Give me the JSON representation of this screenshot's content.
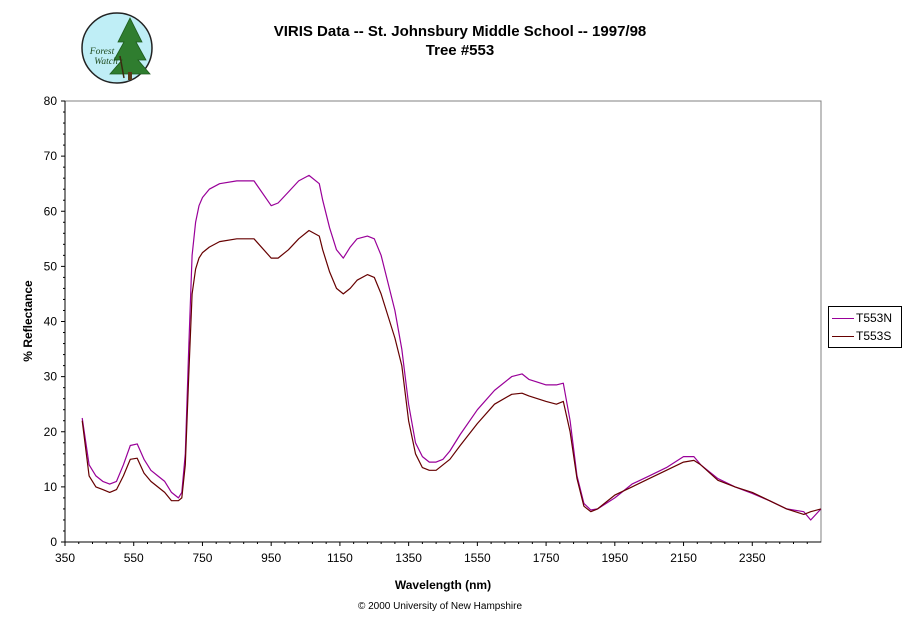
{
  "logo": {
    "line1": "Forest",
    "line2": "Watch",
    "icon": "forest-watch-logo"
  },
  "footer": "© 2000 University of New Hampshire",
  "chart_data": {
    "type": "line",
    "title": "VIRIS Data -- St. Johnsbury Middle School -- 1997/98",
    "subtitle": "Tree #553",
    "xlabel": "Wavelength (nm)",
    "ylabel": "% Reflectance",
    "xlim": [
      350,
      2550
    ],
    "ylim": [
      0,
      80
    ],
    "xticks": [
      350,
      550,
      750,
      950,
      1150,
      1350,
      1550,
      1750,
      1950,
      2150,
      2350
    ],
    "yticks": [
      0,
      10,
      20,
      30,
      40,
      50,
      60,
      70,
      80
    ],
    "grid": false,
    "legend_position": "right",
    "series": [
      {
        "name": "T553N",
        "color": "#990099",
        "x": [
          400,
          420,
          440,
          460,
          480,
          500,
          520,
          540,
          560,
          580,
          600,
          620,
          640,
          660,
          680,
          690,
          700,
          710,
          720,
          730,
          740,
          750,
          770,
          800,
          850,
          900,
          950,
          970,
          1000,
          1030,
          1060,
          1090,
          1100,
          1120,
          1140,
          1160,
          1180,
          1200,
          1230,
          1250,
          1270,
          1290,
          1310,
          1330,
          1350,
          1370,
          1390,
          1410,
          1430,
          1450,
          1470,
          1500,
          1550,
          1600,
          1650,
          1680,
          1700,
          1750,
          1780,
          1800,
          1820,
          1840,
          1860,
          1880,
          1900,
          1950,
          2000,
          2050,
          2100,
          2150,
          2180,
          2200,
          2250,
          2300,
          2350,
          2400,
          2450,
          2500,
          2520,
          2550
        ],
        "values": [
          22.5,
          14,
          12,
          11,
          10.5,
          11,
          14,
          17.5,
          17.8,
          15,
          13,
          12,
          11,
          9,
          8,
          9,
          16,
          35,
          52,
          58,
          61,
          62.5,
          64,
          65,
          65.5,
          65.5,
          61,
          61.5,
          63.5,
          65.5,
          66.5,
          65,
          62,
          57,
          53,
          51.5,
          53.5,
          55,
          55.5,
          55,
          52,
          47,
          42,
          35,
          25,
          18,
          15.5,
          14.5,
          14.5,
          15,
          16.5,
          19.5,
          24,
          27.5,
          30,
          30.5,
          29.5,
          28.5,
          28.5,
          28.8,
          22,
          12,
          7,
          5.8,
          6,
          8,
          10.5,
          12,
          13.5,
          15.5,
          15.5,
          14,
          11.5,
          10,
          8.8,
          7.5,
          6,
          5.5,
          4,
          6
        ]
      },
      {
        "name": "T553S",
        "color": "#660000",
        "x": [
          400,
          420,
          440,
          460,
          480,
          500,
          520,
          540,
          560,
          580,
          600,
          620,
          640,
          660,
          680,
          690,
          700,
          710,
          720,
          730,
          740,
          750,
          770,
          800,
          850,
          900,
          950,
          970,
          1000,
          1030,
          1060,
          1090,
          1100,
          1120,
          1140,
          1160,
          1180,
          1200,
          1230,
          1250,
          1270,
          1290,
          1310,
          1330,
          1350,
          1370,
          1390,
          1410,
          1430,
          1450,
          1470,
          1500,
          1550,
          1600,
          1650,
          1680,
          1700,
          1750,
          1780,
          1800,
          1820,
          1840,
          1860,
          1880,
          1900,
          1950,
          2000,
          2050,
          2100,
          2150,
          2180,
          2200,
          2250,
          2300,
          2350,
          2400,
          2450,
          2500,
          2520,
          2550
        ],
        "values": [
          22,
          12,
          10,
          9.5,
          9,
          9.5,
          12,
          15,
          15.2,
          12.5,
          11,
          10,
          9,
          7.5,
          7.5,
          8,
          14,
          30,
          45,
          49.5,
          51.5,
          52.5,
          53.5,
          54.5,
          55,
          55,
          51.5,
          51.5,
          53,
          55,
          56.5,
          55.5,
          53,
          49,
          46,
          45,
          46,
          47.5,
          48.5,
          48,
          45,
          41,
          37,
          32,
          22,
          16,
          13.5,
          13,
          13,
          14,
          15,
          17.5,
          21.5,
          25,
          26.8,
          27,
          26.5,
          25.5,
          25,
          25.5,
          20,
          11.5,
          6.5,
          5.5,
          6,
          8.5,
          10,
          11.5,
          13,
          14.5,
          14.8,
          14,
          11.2,
          10,
          9,
          7.5,
          6,
          5,
          5.5,
          6
        ]
      }
    ]
  }
}
